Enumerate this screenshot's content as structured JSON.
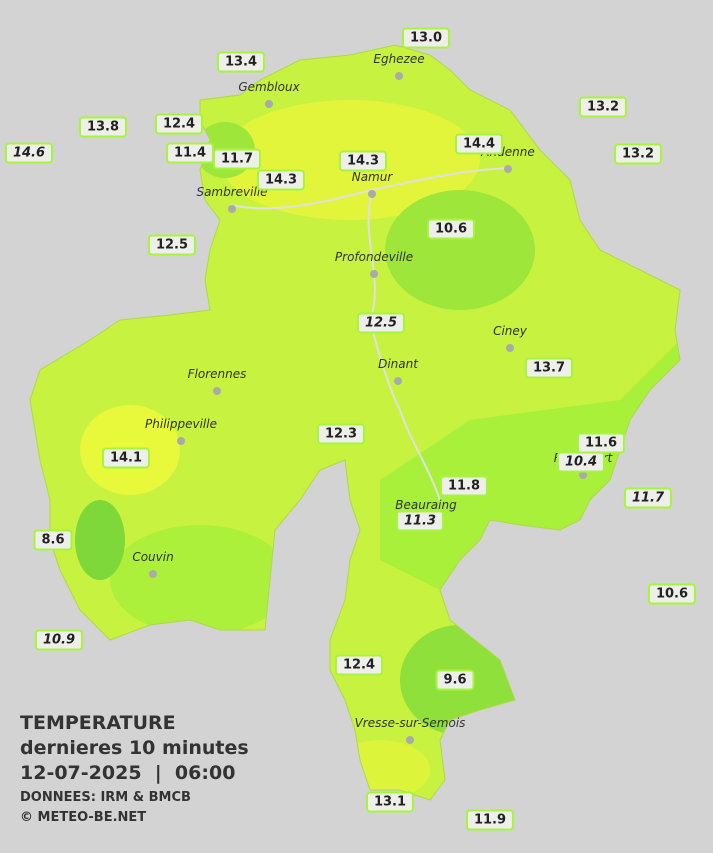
{
  "stations": [
    {
      "label": "13.0"
    },
    {
      "label": "13.4"
    },
    {
      "label": "13.2"
    },
    {
      "label": "13.8"
    },
    {
      "label": "12.4"
    },
    {
      "label": "14.6",
      "italic": true
    },
    {
      "label": "11.4"
    },
    {
      "label": "11.7"
    },
    {
      "label": "14.3"
    },
    {
      "label": "14.3"
    },
    {
      "label": "14.4"
    },
    {
      "label": "13.2"
    },
    {
      "label": "12.5"
    },
    {
      "label": "10.6"
    },
    {
      "label": "12.5",
      "italic": true
    },
    {
      "label": "13.7"
    },
    {
      "label": "12.3"
    },
    {
      "label": "14.1"
    },
    {
      "label": "11.6"
    },
    {
      "label": "10.4",
      "italic": true
    },
    {
      "label": "11.8"
    },
    {
      "label": "11.7",
      "italic": true
    },
    {
      "label": "11.3",
      "italic": true
    },
    {
      "label": "8.6"
    },
    {
      "label": "10.6"
    },
    {
      "label": "10.9",
      "italic": true
    },
    {
      "label": "12.4"
    },
    {
      "label": "9.6"
    },
    {
      "label": "13.1"
    },
    {
      "label": "11.9"
    }
  ],
  "cities": [
    "Eghezee",
    "Gembloux",
    "Andenne",
    "Namur",
    "Sambreville",
    "Profondeville",
    "Ciney",
    "Dinant",
    "Florennes",
    "Philippeville",
    "Rochefort",
    "Beauraing",
    "Couvin",
    "Vresse-sur-Semois"
  ],
  "legend": {
    "title": "TEMPERATURE",
    "subtitle": "dernieres 10 minutes",
    "datetime": "12-07-2025  |  06:00",
    "source": "DONNEES: IRM & BMCB",
    "credit": "© METEO-BE.NET"
  }
}
